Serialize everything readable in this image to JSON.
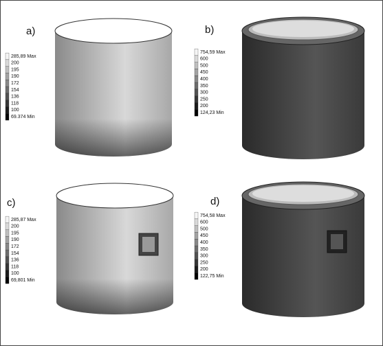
{
  "panels": [
    {
      "label": "a)",
      "legend": [
        "285,89 Max",
        "200",
        "195",
        "190",
        "172",
        "154",
        "136",
        "118",
        "100",
        "69.374 Min"
      ]
    },
    {
      "label": "b)",
      "legend": [
        "754,59 Max",
        "600",
        "500",
        "450",
        "400",
        "350",
        "300",
        "250",
        "200",
        "124,23 Min"
      ]
    },
    {
      "label": "c)",
      "legend": [
        "285,87 Max",
        "200",
        "195",
        "190",
        "172",
        "154",
        "136",
        "118",
        "100",
        "69,801 Min"
      ]
    },
    {
      "label": "d)",
      "legend": [
        "754,58 Max",
        "600",
        "500",
        "450",
        "400",
        "350",
        "300",
        "250",
        "200",
        "122,75 Min"
      ]
    }
  ]
}
